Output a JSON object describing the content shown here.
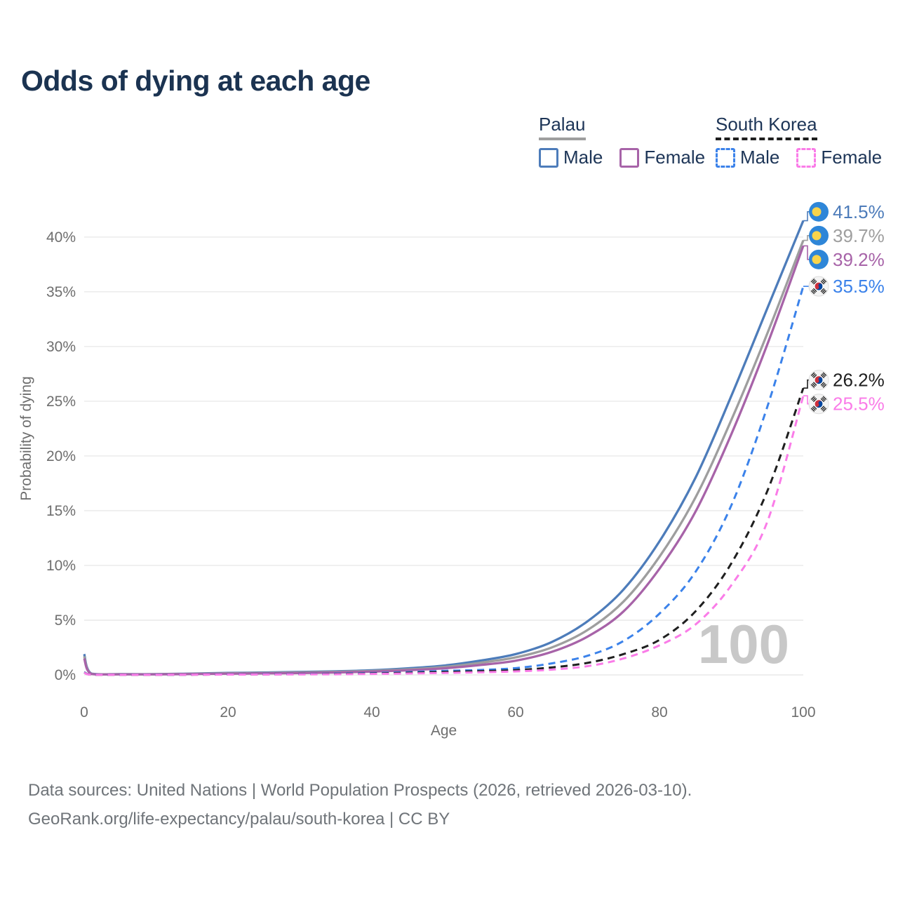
{
  "title": "Odds of dying at each age",
  "legend": {
    "palau": {
      "label": "Palau",
      "male": "Male",
      "female": "Female"
    },
    "south_korea": {
      "label": "South Korea",
      "male": "Male",
      "female": "Female"
    }
  },
  "chart_data": {
    "type": "line",
    "title": "Odds of dying at each age",
    "xlabel": "Age",
    "ylabel": "Probability of dying",
    "xlim": [
      0,
      100
    ],
    "ylim": [
      0,
      43.2
    ],
    "grid": "horizontal-only",
    "watermark": "100",
    "x_ticks": [
      {
        "value": 0,
        "label": "0"
      },
      {
        "value": 20,
        "label": "20"
      },
      {
        "value": 40,
        "label": "40"
      },
      {
        "value": 60,
        "label": "60"
      },
      {
        "value": 80,
        "label": "80"
      },
      {
        "value": 100,
        "label": "100"
      }
    ],
    "y_ticks": [
      {
        "value": 0,
        "label": "0%"
      },
      {
        "value": 5,
        "label": "5%"
      },
      {
        "value": 10,
        "label": "10%"
      },
      {
        "value": 15,
        "label": "15%"
      },
      {
        "value": 20,
        "label": "20%"
      },
      {
        "value": 25,
        "label": "25%"
      },
      {
        "value": 30,
        "label": "30%"
      },
      {
        "value": 35,
        "label": "35%"
      },
      {
        "value": 40,
        "label": "40%"
      }
    ],
    "x": [
      0,
      1,
      5,
      10,
      15,
      20,
      25,
      30,
      35,
      40,
      45,
      50,
      55,
      60,
      65,
      70,
      75,
      80,
      85,
      90,
      95,
      100
    ],
    "series": [
      {
        "name": "Palau Male",
        "group": "Palau",
        "color": "#4d7cba",
        "dashed": false,
        "flag": "palau",
        "end_label": "41.5%",
        "values": [
          1.9,
          0.12,
          0.07,
          0.07,
          0.12,
          0.18,
          0.22,
          0.27,
          0.33,
          0.42,
          0.6,
          0.85,
          1.3,
          1.9,
          3.0,
          4.9,
          7.8,
          12.2,
          18.0,
          25.5,
          33.5,
          41.5
        ]
      },
      {
        "name": "Palau",
        "group": "Palau",
        "color": "#9e9e9e",
        "dashed": false,
        "flag": "palau",
        "end_label": "39.7%",
        "values": [
          1.7,
          0.1,
          0.06,
          0.06,
          0.1,
          0.15,
          0.18,
          0.22,
          0.28,
          0.36,
          0.5,
          0.72,
          1.1,
          1.6,
          2.5,
          4.1,
          6.7,
          10.8,
          16.2,
          23.3,
          31.2,
          39.7
        ]
      },
      {
        "name": "Palau Female",
        "group": "Palau",
        "color": "#a763a8",
        "dashed": false,
        "flag": "palau",
        "end_label": "39.2%",
        "values": [
          1.5,
          0.09,
          0.05,
          0.05,
          0.08,
          0.11,
          0.14,
          0.17,
          0.22,
          0.3,
          0.42,
          0.6,
          0.9,
          1.3,
          2.1,
          3.5,
          5.8,
          9.7,
          14.9,
          22.0,
          30.2,
          39.2
        ]
      },
      {
        "name": "South Korea Male",
        "group": "South Korea",
        "color": "#3b82ea",
        "dashed": true,
        "flag": "south-korea",
        "end_label": "35.5%",
        "values": [
          0.25,
          0.02,
          0.01,
          0.01,
          0.03,
          0.05,
          0.07,
          0.09,
          0.12,
          0.17,
          0.25,
          0.37,
          0.45,
          0.62,
          1.05,
          1.75,
          3.1,
          5.6,
          9.4,
          15.5,
          24.5,
          35.5
        ]
      },
      {
        "name": "South Korea",
        "group": "South Korea",
        "color": "#1f1f1f",
        "dashed": true,
        "flag": "south-korea",
        "end_label": "26.2%",
        "values": [
          0.22,
          0.02,
          0.01,
          0.01,
          0.02,
          0.04,
          0.05,
          0.07,
          0.09,
          0.13,
          0.19,
          0.27,
          0.34,
          0.44,
          0.68,
          1.1,
          1.9,
          3.2,
          5.8,
          10.2,
          16.8,
          26.2
        ]
      },
      {
        "name": "South Korea Female",
        "group": "South Korea",
        "color": "#fa7ce8",
        "dashed": true,
        "flag": "south-korea",
        "end_label": "25.5%",
        "values": [
          0.2,
          0.015,
          0.01,
          0.01,
          0.02,
          0.03,
          0.04,
          0.05,
          0.06,
          0.09,
          0.13,
          0.18,
          0.24,
          0.32,
          0.48,
          0.8,
          1.5,
          2.7,
          4.6,
          8.2,
          14.0,
          25.5
        ]
      }
    ]
  },
  "footer": {
    "line1": "Data sources: United Nations | World Population Prospects (2026, retrieved 2026-03-10).",
    "line2": "GeoRank.org/life-expectancy/palau/south-korea | CC BY"
  }
}
